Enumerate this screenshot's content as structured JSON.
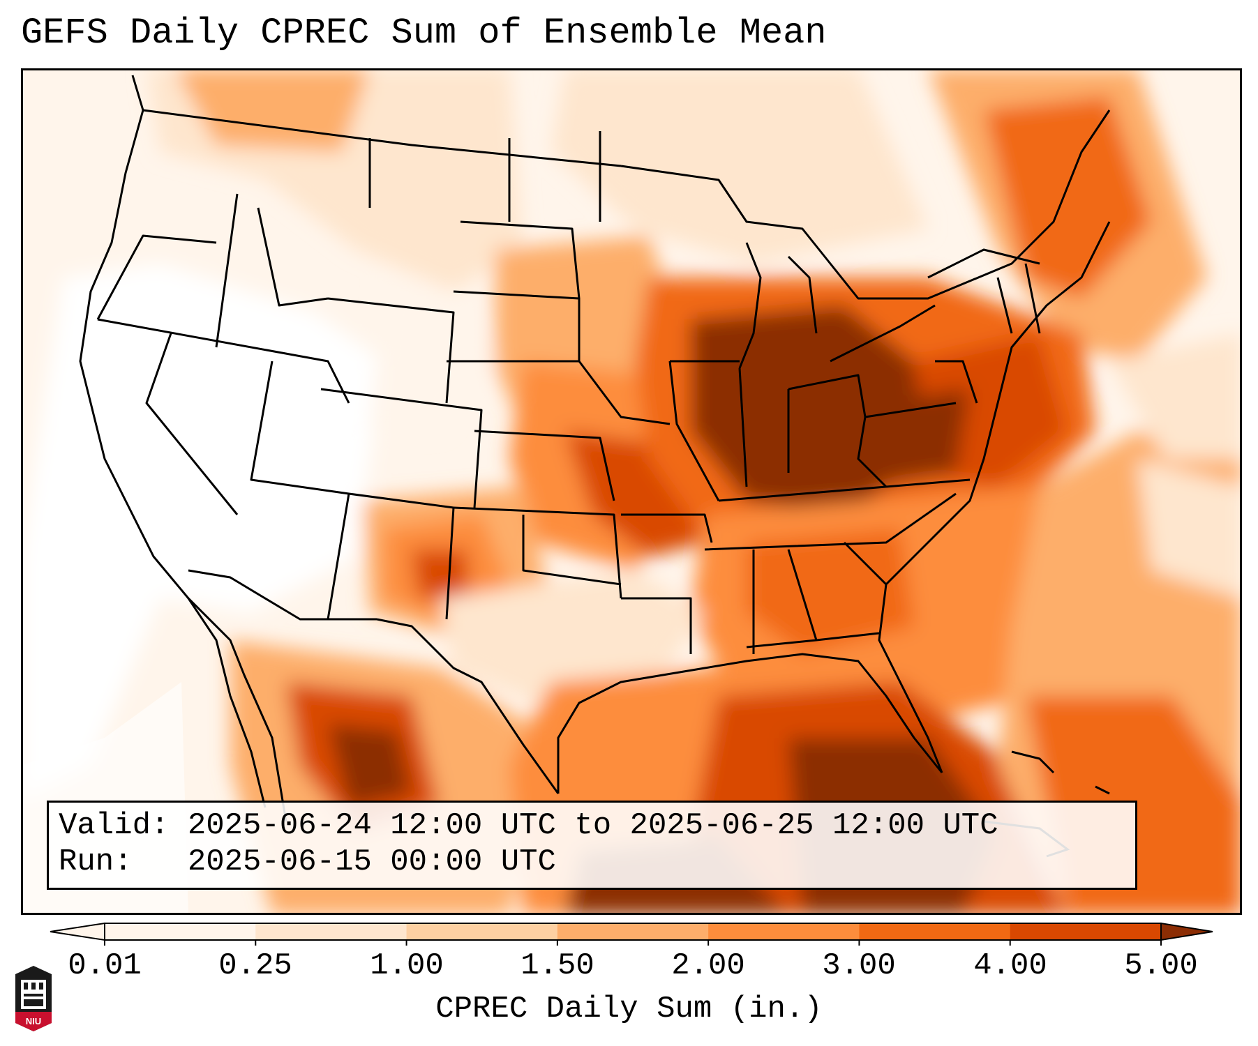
{
  "title": "GEFS Daily CPREC Sum of Ensemble Mean",
  "info": {
    "valid_label": "Valid: 2025-06-24 12:00 UTC to 2025-06-25 12:00 UTC",
    "run_label": "Run:   2025-06-15 00:00 UTC"
  },
  "colorbar": {
    "title": "CPREC Daily Sum (in.)",
    "ticks": [
      "0.01",
      "0.25",
      "1.00",
      "1.50",
      "2.00",
      "3.00",
      "4.00",
      "5.00"
    ],
    "colors": [
      "#fff5eb",
      "#fee6ce",
      "#fdd0a2",
      "#fdae6b",
      "#fd8d3c",
      "#f16913",
      "#d94801",
      "#8c2d04"
    ],
    "extend": "both"
  },
  "logo": {
    "text": "NIU",
    "color": "#c8102e"
  },
  "map": {
    "projection": "lambert-conformal",
    "region": "Continental United States",
    "border_color": "#000000"
  }
}
